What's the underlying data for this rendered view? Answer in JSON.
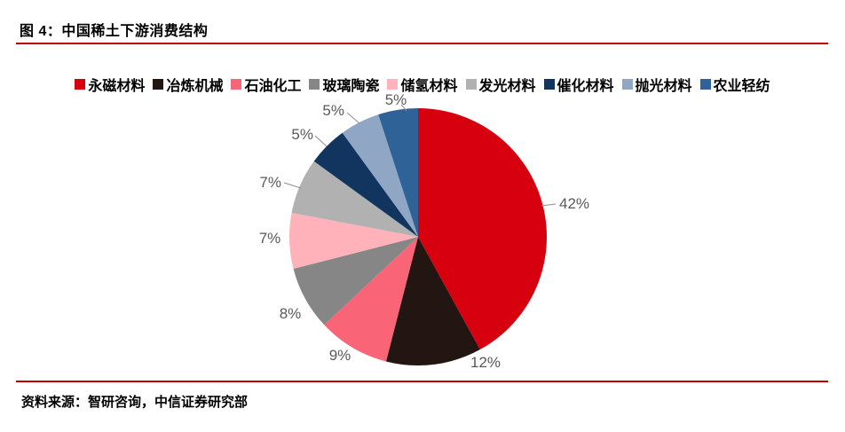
{
  "page": {
    "title": "图 4：中国稀土下游消费结构",
    "source": "资料来源：智研咨询，中信证券研究部"
  },
  "colors": {
    "rule": "#C00000",
    "data_label": "#595959",
    "leader_line": "#8C8C8C",
    "legend_text": "#000000",
    "background": "#FFFFFF"
  },
  "chart_data": {
    "type": "pie",
    "title": "中国稀土下游消费结构",
    "legend_position": "top",
    "start_angle_deg": 0,
    "direction": "clockwise",
    "unit": "%",
    "categories": [
      "永磁材料",
      "冶炼机械",
      "石油化工",
      "玻璃陶瓷",
      "储氢材料",
      "发光材料",
      "催化材料",
      "抛光材料",
      "农业轻纺"
    ],
    "values": [
      42,
      12,
      9,
      8,
      7,
      7,
      5,
      5,
      5
    ],
    "labels": [
      "42%",
      "12%",
      "9%",
      "8%",
      "7%",
      "7%",
      "5%",
      "5%",
      "5%"
    ],
    "slice_colors": [
      "#D7000F",
      "#231512",
      "#FA6477",
      "#868686",
      "#FFB2BA",
      "#B1B1B1",
      "#11355E",
      "#8FA6C4",
      "#2F6398"
    ]
  }
}
